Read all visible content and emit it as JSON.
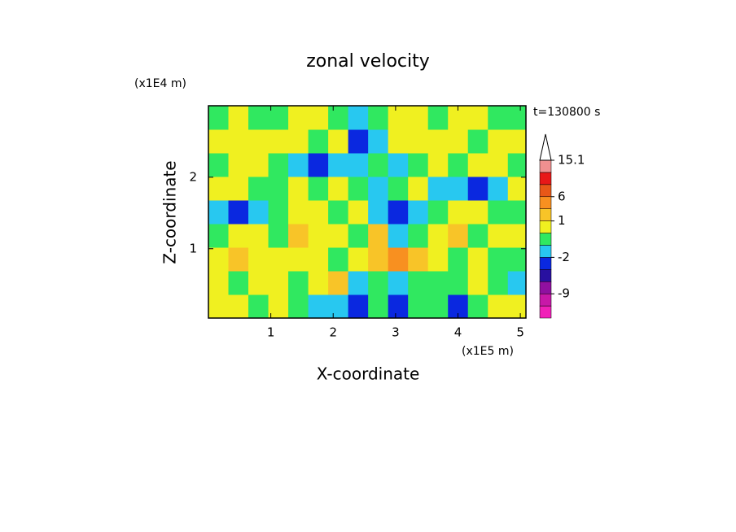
{
  "chart_data": {
    "type": "contour",
    "title": "zonal velocity",
    "xlabel": "X-coordinate",
    "ylabel": "Z-coordinate",
    "x_unit": "(x1E5 m)",
    "y_unit": "(x1E4 m)",
    "time_label": "t=130800 s",
    "xlim": [
      0,
      5.09
    ],
    "ylim": [
      0.03,
      3.0
    ],
    "xticks": [
      1,
      2,
      3,
      4,
      5
    ],
    "yticks": [
      1,
      2
    ],
    "x": [
      0.16,
      0.48,
      0.8,
      1.12,
      1.44,
      1.76,
      2.08,
      2.4,
      2.72,
      3.04,
      3.36,
      3.68,
      4.0,
      4.32,
      4.64,
      4.96
    ],
    "y": [
      0.195,
      0.525,
      0.855,
      1.185,
      1.515,
      1.845,
      2.175,
      2.505,
      2.835
    ],
    "z": [
      [
        0.5,
        0.5,
        -0.5,
        0.5,
        -0.5,
        -1.5,
        -1.5,
        -3,
        -0.5,
        -3,
        -0.5,
        -0.5,
        -3,
        -0.5,
        0.5,
        0.5
      ],
      [
        0.5,
        -0.5,
        0.5,
        0.5,
        -0.5,
        0.5,
        1.5,
        -1.5,
        -0.5,
        -1.5,
        -0.5,
        -0.5,
        -0.5,
        0.5,
        -0.5,
        -1.5
      ],
      [
        0.5,
        1.5,
        0.5,
        0.5,
        0.5,
        0.5,
        -0.5,
        0.5,
        2,
        4,
        1.5,
        0.5,
        -0.5,
        0.5,
        -0.5,
        -0.5
      ],
      [
        -0.5,
        0.5,
        0.5,
        -0.5,
        1.5,
        0.5,
        0.5,
        -0.5,
        1.5,
        -1.5,
        -0.5,
        0.5,
        1.5,
        -0.5,
        0.5,
        0.5
      ],
      [
        -1.5,
        -3,
        -1.5,
        -0.5,
        0.5,
        0.5,
        -0.5,
        0.5,
        -1.5,
        -3,
        -1.5,
        -0.5,
        0.5,
        0.5,
        -0.5,
        -0.5
      ],
      [
        0.5,
        0.5,
        -0.5,
        -0.5,
        0.5,
        -0.5,
        0.5,
        -0.5,
        -1.5,
        -0.5,
        0.5,
        -1.5,
        -1.5,
        -3,
        -1.5,
        0.5
      ],
      [
        -0.5,
        0.5,
        0.5,
        -0.5,
        -1.5,
        -3,
        -1.5,
        -1.5,
        -0.5,
        -1.5,
        -0.5,
        0.5,
        -0.5,
        0.5,
        0.5,
        -0.5
      ],
      [
        0.5,
        0.5,
        0.5,
        0.5,
        0.5,
        -0.5,
        0.5,
        -2.5,
        -1.5,
        0.5,
        0.5,
        0.5,
        0.5,
        -0.5,
        0.5,
        0.5
      ],
      [
        -0.5,
        0.5,
        -0.5,
        -0.5,
        0.5,
        0.5,
        -0.5,
        -1.5,
        -0.5,
        0.5,
        0.5,
        -0.5,
        0.5,
        0.5,
        -0.5,
        -0.5
      ]
    ],
    "colorbar": {
      "levels": [
        -15,
        -12,
        -9,
        -6,
        -3,
        -2,
        -1,
        0,
        1,
        3,
        6,
        9,
        12,
        15.1
      ],
      "colors": [
        "#f020b8",
        "#c818a8",
        "#9010a0",
        "#2810a0",
        "#0a28e0",
        "#28c8f0",
        "#30e860",
        "#f0f020",
        "#f8c428",
        "#f89020",
        "#e85818",
        "#e81818",
        "#f09090"
      ],
      "ticks": [
        15.1,
        6,
        1,
        -2,
        -9
      ]
    }
  }
}
